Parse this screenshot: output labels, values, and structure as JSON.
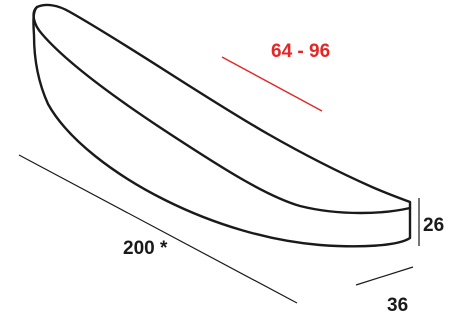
{
  "diagram": {
    "shape": "curved cushion outline",
    "stroke_color": "#1a1a1a",
    "accent_color": "#e32727",
    "labels": {
      "curve_depth": "64 - 96",
      "length": "200 *",
      "height": "26",
      "depth": "36"
    }
  }
}
